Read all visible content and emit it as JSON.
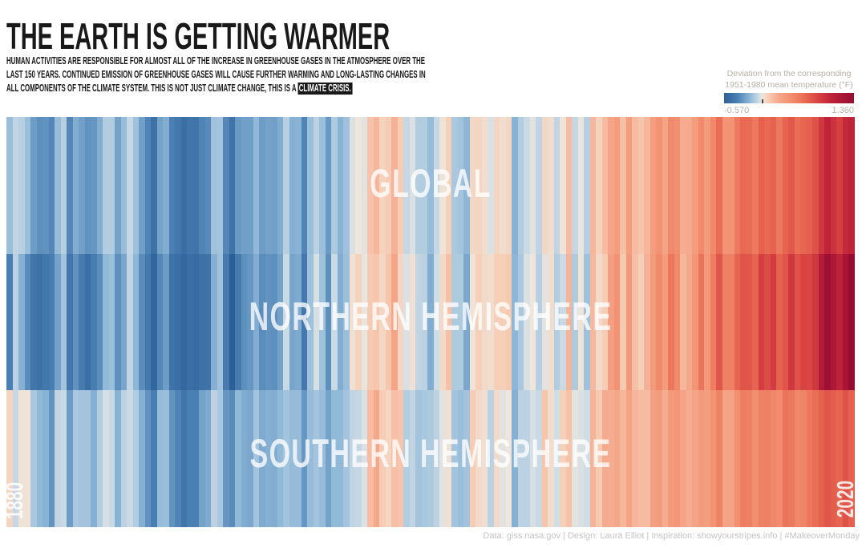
{
  "page": {
    "background": "#ffffff",
    "text_color": "#191919"
  },
  "header": {
    "title": "THE EARTH IS GETTING WARMER",
    "subtitle_line1": "HUMAN ACTIVITIES ARE RESPONSIBLE FOR ALMOST ALL OF THE INCREASE IN GREENHOUSE GASES IN THE ATMOSPHERE OVER THE",
    "subtitle_line2": "LAST 150 YEARS. CONTINUED EMISSION OF GREENHOUSE GASES WILL CAUSE FURTHER WARMING AND LONG-LASTING CHANGES IN",
    "subtitle_line3": "ALL COMPONENTS OF THE CLIMATE SYSTEM. THIS IS NOT JUST CLIMATE CHANGE, THIS IS A ",
    "subtitle_highlight": "CLIMATE CRISIS."
  },
  "legend": {
    "title_line1": "Deviation from the corresponding",
    "title_line2": "1951-1980 mean temperature (°F)",
    "min_label": "-0.570",
    "max_label": "1.360"
  },
  "footer": {
    "credit": "Data: giss.nasa.gov | Design: Laura Elliot | Inspiration: showyourstripes.info | #MakeoverMonday"
  },
  "chart_data": {
    "type": "heatmap",
    "variant": "warming-stripes",
    "title": "THE EARTH IS GETTING WARMER",
    "x_start_label": "1880",
    "x_end_label": "2020",
    "year_start": 1880,
    "year_end": 2020,
    "value_label": "Deviation from the corresponding 1951-1980 mean temperature (°F)",
    "legend_range": [
      -0.57,
      1.36
    ],
    "color_scale": {
      "domain": [
        -0.57,
        1.36
      ],
      "stops": [
        {
          "t": 0.0,
          "color": "#2d6096"
        },
        {
          "t": 0.1,
          "color": "#4a7fb3"
        },
        {
          "t": 0.2,
          "color": "#8fb8d8"
        },
        {
          "t": 0.27,
          "color": "#cfdde6"
        },
        {
          "t": 0.295,
          "color": "#eee6dc"
        },
        {
          "t": 0.34,
          "color": "#f6cdb5"
        },
        {
          "t": 0.42,
          "color": "#f5a78a"
        },
        {
          "t": 0.52,
          "color": "#f18d6d"
        },
        {
          "t": 0.62,
          "color": "#e96b53"
        },
        {
          "t": 0.72,
          "color": "#d94443"
        },
        {
          "t": 0.82,
          "color": "#c02439"
        },
        {
          "t": 0.92,
          "color": "#a81535"
        },
        {
          "t": 1.0,
          "color": "#970c32"
        }
      ]
    },
    "series": [
      {
        "name": "GLOBAL",
        "values": [
          -0.16,
          -0.08,
          -0.1,
          -0.16,
          -0.28,
          -0.32,
          -0.31,
          -0.35,
          -0.17,
          -0.1,
          -0.35,
          -0.22,
          -0.27,
          -0.31,
          -0.3,
          -0.22,
          -0.11,
          -0.11,
          -0.26,
          -0.17,
          -0.07,
          -0.15,
          -0.27,
          -0.36,
          -0.46,
          -0.26,
          -0.22,
          -0.38,
          -0.42,
          -0.48,
          -0.43,
          -0.44,
          -0.36,
          -0.34,
          -0.15,
          -0.14,
          -0.35,
          -0.45,
          -0.29,
          -0.27,
          -0.27,
          -0.18,
          -0.28,
          -0.26,
          -0.27,
          -0.22,
          -0.1,
          -0.21,
          -0.2,
          -0.36,
          -0.16,
          -0.09,
          -0.16,
          -0.29,
          -0.12,
          -0.2,
          -0.15,
          -0.03,
          0.0,
          -0.02,
          0.13,
          0.18,
          0.07,
          0.09,
          0.2,
          0.09,
          -0.07,
          -0.03,
          -0.11,
          -0.11,
          -0.17,
          -0.07,
          0.01,
          0.08,
          -0.13,
          -0.14,
          -0.19,
          0.05,
          0.06,
          0.03,
          -0.03,
          0.06,
          0.03,
          0.05,
          -0.2,
          -0.11,
          -0.06,
          -0.02,
          -0.08,
          0.05,
          0.03,
          -0.08,
          0.01,
          0.16,
          -0.07,
          -0.01,
          -0.1,
          0.18,
          0.07,
          0.16,
          0.26,
          0.32,
          0.14,
          0.31,
          0.16,
          0.12,
          0.18,
          0.32,
          0.39,
          0.27,
          0.45,
          0.41,
          0.22,
          0.23,
          0.32,
          0.45,
          0.33,
          0.46,
          0.61,
          0.38,
          0.39,
          0.54,
          0.63,
          0.62,
          0.54,
          0.68,
          0.64,
          0.67,
          0.55,
          0.66,
          0.72,
          0.61,
          0.65,
          0.68,
          0.75,
          0.9,
          1.02,
          0.93,
          0.85,
          0.98,
          1.02
        ]
      },
      {
        "name": "NORTHERN HEMISPHERE",
        "values": [
          -0.38,
          -0.09,
          -0.21,
          -0.33,
          -0.43,
          -0.46,
          -0.42,
          -0.39,
          -0.26,
          -0.14,
          -0.42,
          -0.31,
          -0.4,
          -0.48,
          -0.39,
          -0.33,
          -0.18,
          -0.16,
          -0.32,
          -0.25,
          -0.08,
          -0.19,
          -0.33,
          -0.41,
          -0.53,
          -0.35,
          -0.28,
          -0.45,
          -0.48,
          -0.52,
          -0.48,
          -0.5,
          -0.46,
          -0.45,
          -0.21,
          -0.15,
          -0.4,
          -0.57,
          -0.4,
          -0.32,
          -0.3,
          -0.22,
          -0.33,
          -0.31,
          -0.32,
          -0.26,
          -0.06,
          -0.25,
          -0.23,
          -0.42,
          -0.15,
          -0.04,
          -0.15,
          -0.32,
          -0.06,
          -0.22,
          -0.16,
          0.02,
          0.07,
          -0.01,
          0.1,
          0.12,
          0.05,
          0.12,
          0.26,
          0.06,
          -0.03,
          0.02,
          -0.08,
          -0.09,
          -0.22,
          -0.05,
          0.04,
          0.14,
          -0.12,
          -0.12,
          -0.24,
          0.01,
          0.08,
          0.04,
          0.03,
          0.08,
          0.08,
          0.1,
          -0.19,
          -0.13,
          -0.03,
          0.0,
          -0.1,
          -0.02,
          0.03,
          -0.11,
          -0.06,
          0.19,
          -0.12,
          0.01,
          -0.15,
          0.17,
          0.04,
          0.09,
          0.3,
          0.4,
          0.1,
          0.35,
          0.14,
          0.08,
          0.2,
          0.34,
          0.45,
          0.32,
          0.56,
          0.45,
          0.18,
          0.24,
          0.37,
          0.57,
          0.35,
          0.53,
          0.73,
          0.5,
          0.51,
          0.66,
          0.74,
          0.73,
          0.66,
          0.86,
          0.78,
          0.87,
          0.67,
          0.74,
          0.89,
          0.75,
          0.82,
          0.81,
          0.89,
          1.13,
          1.31,
          1.17,
          1.04,
          1.21,
          1.36
        ]
      },
      {
        "name": "SOUTHERN HEMISPHERE",
        "values": [
          0.06,
          -0.07,
          0.01,
          0.01,
          -0.13,
          -0.18,
          -0.2,
          -0.31,
          -0.08,
          -0.06,
          -0.28,
          -0.13,
          -0.14,
          -0.14,
          -0.21,
          -0.11,
          -0.04,
          -0.06,
          -0.2,
          -0.09,
          -0.06,
          -0.11,
          -0.21,
          -0.31,
          -0.39,
          -0.17,
          -0.16,
          -0.31,
          -0.36,
          -0.44,
          -0.38,
          -0.38,
          -0.26,
          -0.23,
          -0.09,
          -0.13,
          -0.3,
          -0.33,
          -0.18,
          -0.22,
          -0.24,
          -0.14,
          -0.23,
          -0.21,
          -0.22,
          -0.18,
          -0.14,
          -0.17,
          -0.17,
          -0.3,
          -0.17,
          -0.14,
          -0.17,
          -0.26,
          -0.18,
          -0.18,
          -0.14,
          -0.08,
          -0.07,
          -0.03,
          0.16,
          0.24,
          0.09,
          0.06,
          0.14,
          0.12,
          -0.11,
          -0.08,
          -0.14,
          -0.13,
          -0.12,
          -0.09,
          -0.02,
          0.02,
          -0.14,
          -0.16,
          -0.14,
          0.09,
          0.04,
          0.02,
          -0.09,
          0.04,
          -0.02,
          0.0,
          -0.21,
          -0.09,
          -0.09,
          -0.04,
          -0.06,
          0.12,
          0.03,
          -0.05,
          0.08,
          0.13,
          -0.02,
          -0.03,
          -0.05,
          0.19,
          0.1,
          0.23,
          0.22,
          0.24,
          0.18,
          0.27,
          0.18,
          0.16,
          0.16,
          0.3,
          0.33,
          0.22,
          0.34,
          0.37,
          0.26,
          0.22,
          0.27,
          0.33,
          0.31,
          0.39,
          0.49,
          0.26,
          0.27,
          0.42,
          0.52,
          0.51,
          0.42,
          0.5,
          0.5,
          0.47,
          0.43,
          0.58,
          0.55,
          0.47,
          0.48,
          0.55,
          0.61,
          0.67,
          0.73,
          0.69,
          0.66,
          0.75,
          0.68
        ]
      }
    ]
  }
}
